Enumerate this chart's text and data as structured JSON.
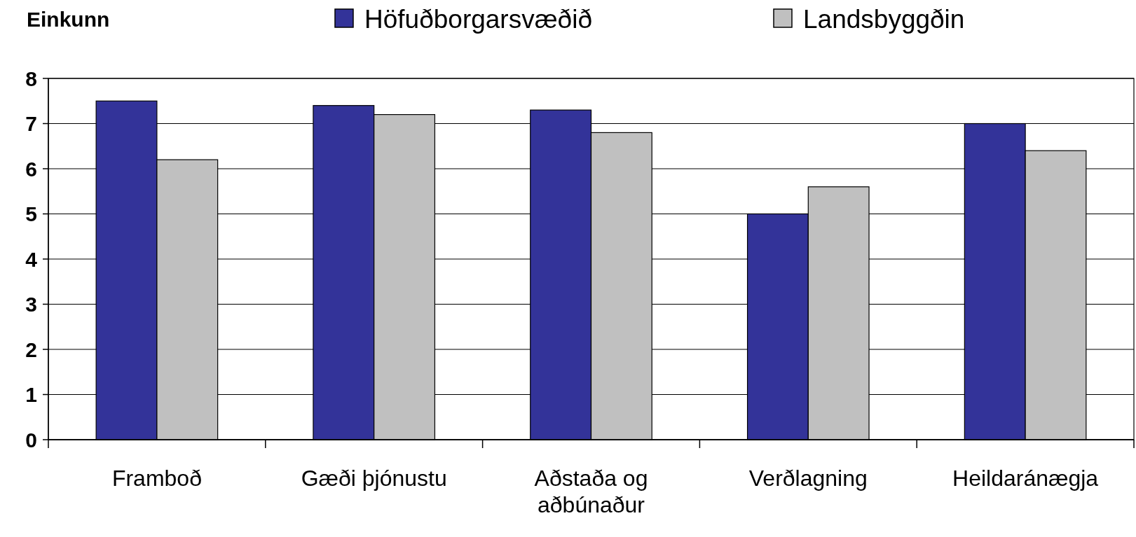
{
  "chart_data": {
    "type": "bar",
    "ylabel": "Einkunn",
    "categories": [
      "Framboð",
      "Gæði þjónustu",
      "Aðstaða og aðbúnaður",
      "Verðlagning",
      "Heildaránægja"
    ],
    "series": [
      {
        "name": "Höfuðborgarsvæðið",
        "color": "#333399",
        "values": [
          7.5,
          7.4,
          7.3,
          5.0,
          7.0
        ]
      },
      {
        "name": "Landsbyggðin",
        "color": "#c0c0c0",
        "values": [
          6.2,
          7.2,
          6.8,
          5.6,
          6.4
        ]
      }
    ],
    "ylim": [
      0,
      8
    ],
    "yticks": [
      0,
      1,
      2,
      3,
      4,
      5,
      6,
      7,
      8
    ],
    "grid": "y",
    "legend": "top"
  }
}
